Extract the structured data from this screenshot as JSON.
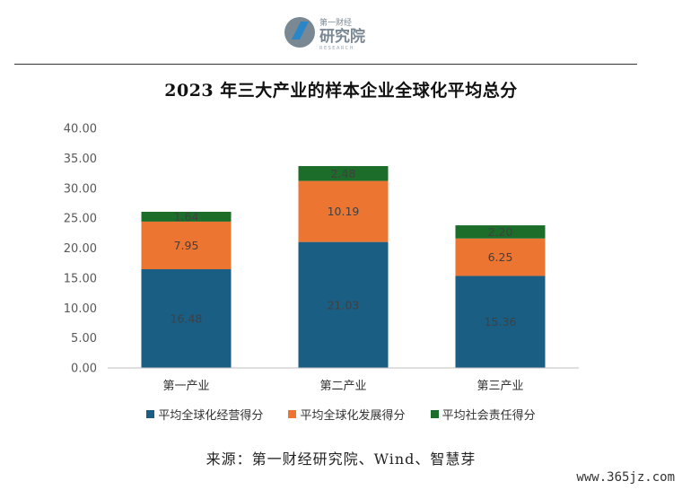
{
  "header": {
    "logo_top": "第一财经",
    "logo_main": "研究院",
    "logo_tag": "RESEARCH"
  },
  "chart_data": {
    "type": "bar",
    "stacked": true,
    "title": "2023 年三大产业的样本企业全球化平均总分",
    "categories": [
      "第一产业",
      "第二产业",
      "第三产业"
    ],
    "series": [
      {
        "name": "平均全球化经营得分",
        "color": "#1a5e84",
        "values": [
          16.48,
          21.03,
          15.36
        ]
      },
      {
        "name": "平均全球化发展得分",
        "color": "#ed7532",
        "values": [
          7.95,
          10.19,
          6.25
        ]
      },
      {
        "name": "平均社会责任得分",
        "color": "#1c6d2a",
        "values": [
          1.64,
          2.48,
          2.2
        ]
      }
    ],
    "value_labels": [
      [
        "16.48",
        "21.03",
        "15.36"
      ],
      [
        "7.95",
        "10.19",
        "6.25"
      ],
      [
        "1.64",
        "2.48",
        "2.20"
      ]
    ],
    "ylim": [
      0,
      40
    ],
    "yticks": [
      "0.00",
      "5.00",
      "10.00",
      "15.00",
      "20.00",
      "25.00",
      "30.00",
      "35.00",
      "40.00"
    ],
    "xlabel": "",
    "ylabel": "",
    "grid": false,
    "legend_position": "bottom"
  },
  "source": "来源：第一财经研究院、Wind、智慧芽",
  "watermark": "www.365jz.com"
}
